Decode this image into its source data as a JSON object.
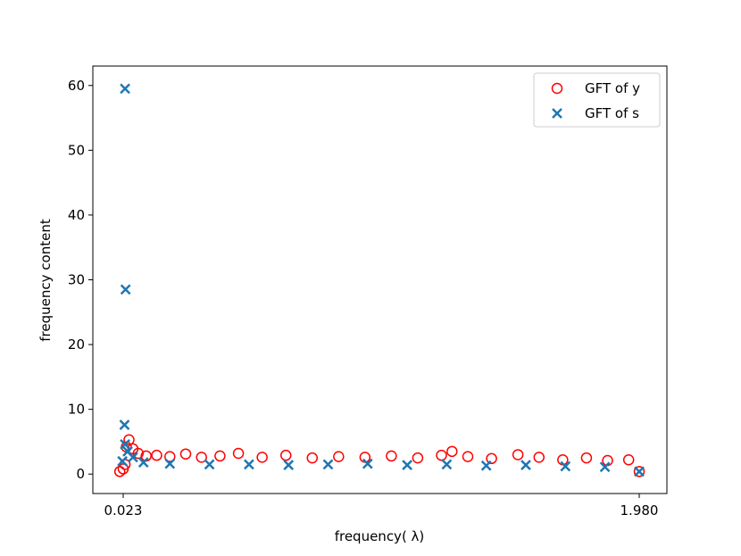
{
  "chart_data": {
    "type": "scatter",
    "title": "",
    "xlabel": "frequency( λ)",
    "ylabel": "frequency content",
    "xlim": [
      0.023,
      1.98
    ],
    "ylim": [
      -3.0,
      63.0
    ],
    "x_ticks": [
      0.023,
      1.98
    ],
    "x_tick_labels": [
      "0.023",
      "1.980"
    ],
    "y_ticks": [
      0,
      10,
      20,
      30,
      40,
      50,
      60
    ],
    "y_tick_labels": [
      "0",
      "10",
      "20",
      "30",
      "40",
      "50",
      "60"
    ],
    "grid": false,
    "legend_position": "top-right",
    "series": [
      {
        "name": "GFT of y",
        "marker": "circle-open",
        "color": "#ff0000",
        "x": [
          0.01,
          0.023,
          0.03,
          0.035,
          0.045,
          0.06,
          0.08,
          0.11,
          0.15,
          0.2,
          0.26,
          0.32,
          0.39,
          0.46,
          0.55,
          0.64,
          0.74,
          0.84,
          0.94,
          1.04,
          1.14,
          1.23,
          1.27,
          1.33,
          1.42,
          1.52,
          1.6,
          1.69,
          1.78,
          1.86,
          1.94,
          1.98
        ],
        "y": [
          0.4,
          0.8,
          1.5,
          4.2,
          5.3,
          3.9,
          3.2,
          2.8,
          2.9,
          2.7,
          3.1,
          2.6,
          2.8,
          3.2,
          2.6,
          2.9,
          2.5,
          2.7,
          2.6,
          2.8,
          2.5,
          2.9,
          3.5,
          2.7,
          2.4,
          3.0,
          2.6,
          2.2,
          2.5,
          2.1,
          2.2,
          0.4
        ]
      },
      {
        "name": "GFT of s",
        "marker": "x",
        "color": "#1f77b4",
        "x": [
          0.02,
          0.028,
          0.03,
          0.03,
          0.032,
          0.04,
          0.06,
          0.1,
          0.2,
          0.35,
          0.5,
          0.65,
          0.8,
          0.95,
          1.1,
          1.25,
          1.4,
          1.55,
          1.7,
          1.85,
          1.98
        ],
        "y": [
          2.0,
          7.6,
          59.5,
          4.6,
          28.5,
          3.5,
          2.6,
          1.8,
          1.6,
          1.5,
          1.5,
          1.4,
          1.5,
          1.6,
          1.4,
          1.5,
          1.3,
          1.4,
          1.2,
          1.1,
          0.4
        ]
      }
    ]
  }
}
